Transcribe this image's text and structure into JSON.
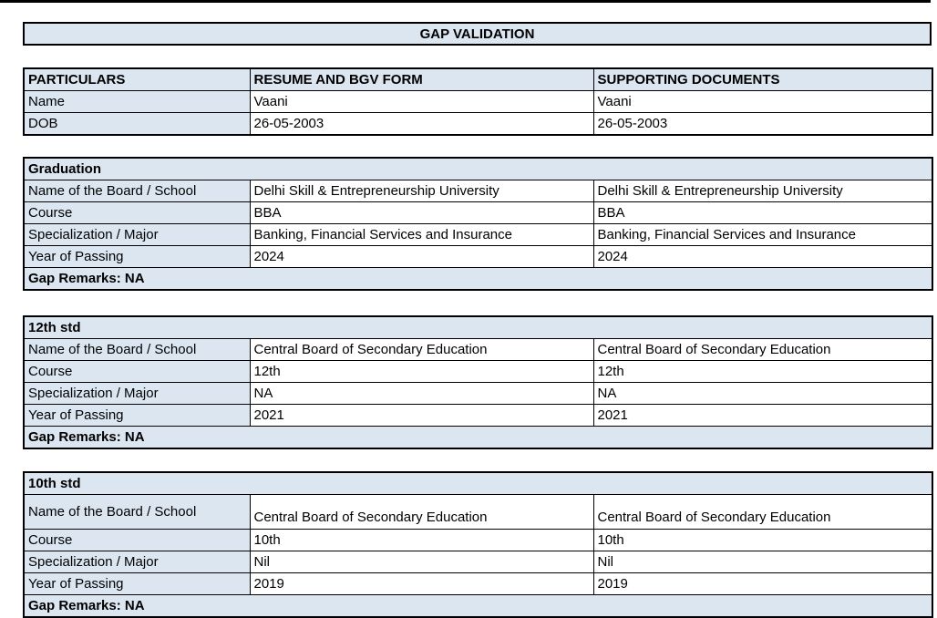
{
  "page": {
    "title": "GAP VALIDATION"
  },
  "colors": {
    "header_bg": "#dce6f1",
    "border": "#000000",
    "text": "#000000",
    "page_bg": "#ffffff"
  },
  "particulars_table": {
    "headers": [
      "PARTICULARS",
      "RESUME AND BGV FORM",
      "SUPPORTING DOCUMENTS"
    ],
    "rows": [
      {
        "label": "Name",
        "resume": "Vaani",
        "supporting": "Vaani"
      },
      {
        "label": "DOB",
        "resume": "26-05-2003",
        "supporting": "26-05-2003"
      }
    ]
  },
  "sections": [
    {
      "title": "Graduation",
      "rows": [
        {
          "label": "Name of the Board / School",
          "resume": "Delhi Skill & Entrepreneurship University",
          "supporting": "Delhi Skill & Entrepreneurship University"
        },
        {
          "label": "Course",
          "resume": "BBA",
          "supporting": "BBA"
        },
        {
          "label": "Specialization / Major",
          "resume": "Banking, Financial Services and Insurance",
          "supporting": "Banking, Financial Services and Insurance"
        },
        {
          "label": "Year of Passing",
          "resume": "2024",
          "supporting": "2024"
        }
      ],
      "gap_remarks": "Gap Remarks: NA"
    },
    {
      "title": "12th std",
      "rows": [
        {
          "label": "Name of the Board / School",
          "resume": "Central Board of Secondary Education",
          "supporting": "Central Board of Secondary Education"
        },
        {
          "label": "Course",
          "resume": "12th",
          "supporting": "12th"
        },
        {
          "label": "Specialization / Major",
          "resume": "NA",
          "supporting": "NA"
        },
        {
          "label": "Year of Passing",
          "resume": "2021",
          "supporting": "2021"
        }
      ],
      "gap_remarks": "Gap Remarks: NA"
    },
    {
      "title": "10th std",
      "rows": [
        {
          "label": "Name of the Board / School",
          "resume": "Central Board of Secondary Education",
          "supporting": "Central Board of Secondary Education"
        },
        {
          "label": "Course",
          "resume": "10th",
          "supporting": "10th"
        },
        {
          "label": "Specialization / Major",
          "resume": "Nil",
          "supporting": "Nil"
        },
        {
          "label": "Year of Passing",
          "resume": "2019",
          "supporting": "2019"
        }
      ],
      "gap_remarks": "Gap Remarks: NA"
    }
  ]
}
